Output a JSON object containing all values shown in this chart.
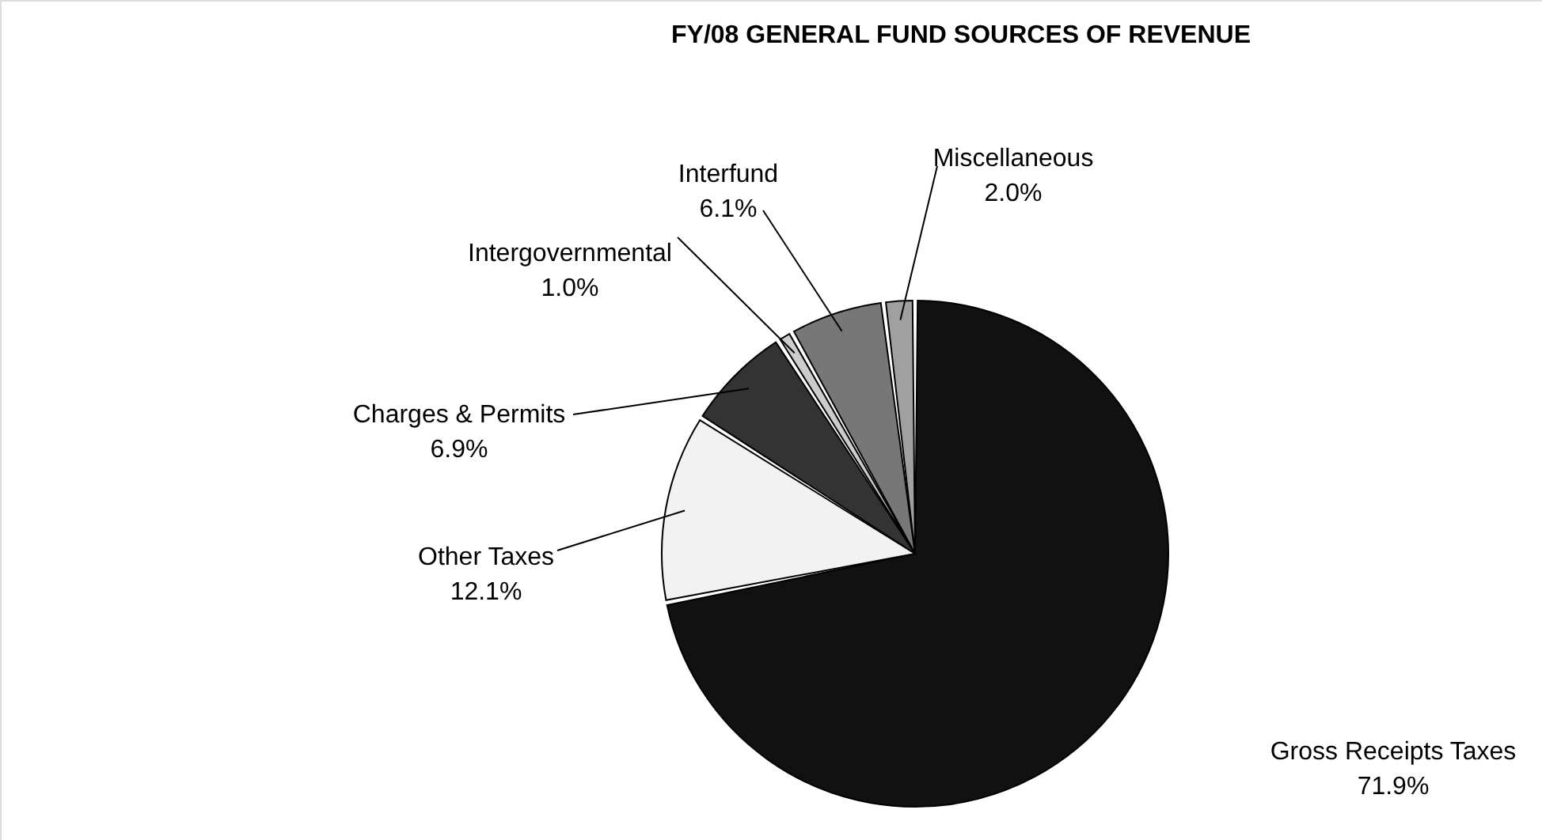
{
  "chart_data": {
    "type": "pie",
    "title": "FY/08 GENERAL FUND SOURCES OF REVENUE",
    "categories": [
      "Gross Receipts Taxes",
      "Other Taxes",
      "Charges & Permits",
      "Intergovernmental",
      "Interfund",
      "Miscellaneous"
    ],
    "values": [
      71.9,
      12.1,
      6.9,
      1.0,
      6.1,
      2.0
    ],
    "value_labels": [
      "71.9%",
      "12.1%",
      "6.9%",
      "1.0%",
      "6.1%",
      "2.0%"
    ],
    "colors": [
      "#111111",
      "#f2f2f2",
      "#333333",
      "#cccccc",
      "#777777",
      "#a0a0a0"
    ]
  }
}
